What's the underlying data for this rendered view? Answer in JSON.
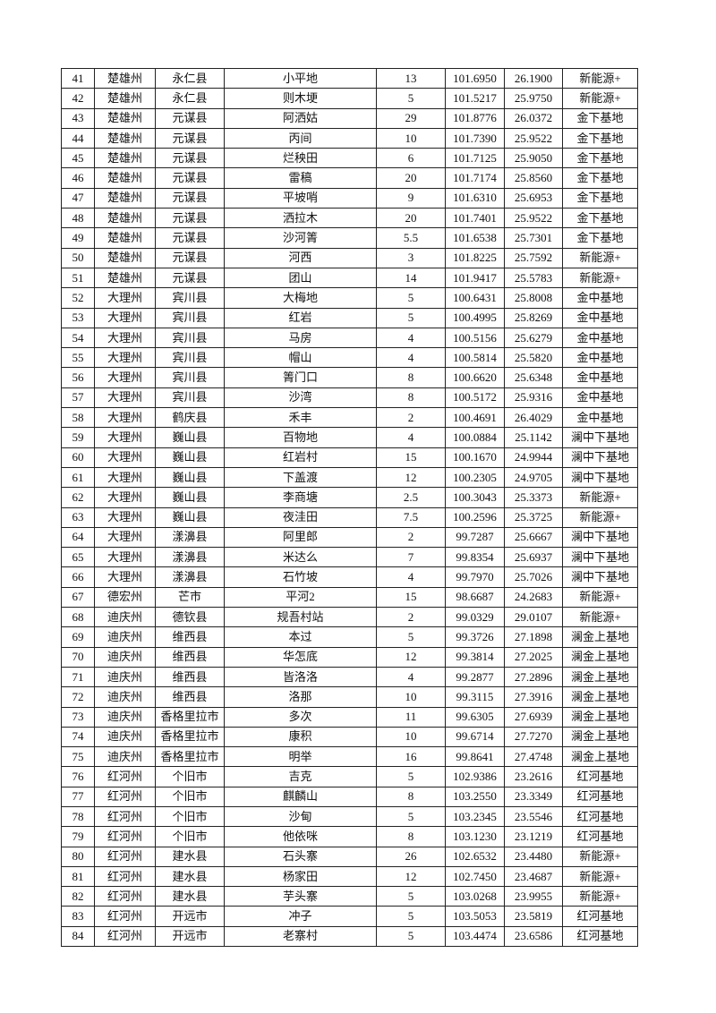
{
  "table": {
    "rows": [
      [
        "41",
        "楚雄州",
        "永仁县",
        "小平地",
        "13",
        "101.6950",
        "26.1900",
        "新能源+"
      ],
      [
        "42",
        "楚雄州",
        "永仁县",
        "则木埂",
        "5",
        "101.5217",
        "25.9750",
        "新能源+"
      ],
      [
        "43",
        "楚雄州",
        "元谋县",
        "阿洒姑",
        "29",
        "101.8776",
        "26.0372",
        "金下基地"
      ],
      [
        "44",
        "楚雄州",
        "元谋县",
        "丙间",
        "10",
        "101.7390",
        "25.9522",
        "金下基地"
      ],
      [
        "45",
        "楚雄州",
        "元谋县",
        "烂秧田",
        "6",
        "101.7125",
        "25.9050",
        "金下基地"
      ],
      [
        "46",
        "楚雄州",
        "元谋县",
        "雷稿",
        "20",
        "101.7174",
        "25.8560",
        "金下基地"
      ],
      [
        "47",
        "楚雄州",
        "元谋县",
        "平坡哨",
        "9",
        "101.6310",
        "25.6953",
        "金下基地"
      ],
      [
        "48",
        "楚雄州",
        "元谋县",
        "洒拉木",
        "20",
        "101.7401",
        "25.9522",
        "金下基地"
      ],
      [
        "49",
        "楚雄州",
        "元谋县",
        "沙河箐",
        "5.5",
        "101.6538",
        "25.7301",
        "金下基地"
      ],
      [
        "50",
        "楚雄州",
        "元谋县",
        "河西",
        "3",
        "101.8225",
        "25.7592",
        "新能源+"
      ],
      [
        "51",
        "楚雄州",
        "元谋县",
        "团山",
        "14",
        "101.9417",
        "25.5783",
        "新能源+"
      ],
      [
        "52",
        "大理州",
        "宾川县",
        "大梅地",
        "5",
        "100.6431",
        "25.8008",
        "金中基地"
      ],
      [
        "53",
        "大理州",
        "宾川县",
        "红岩",
        "5",
        "100.4995",
        "25.8269",
        "金中基地"
      ],
      [
        "54",
        "大理州",
        "宾川县",
        "马房",
        "4",
        "100.5156",
        "25.6279",
        "金中基地"
      ],
      [
        "55",
        "大理州",
        "宾川县",
        "帽山",
        "4",
        "100.5814",
        "25.5820",
        "金中基地"
      ],
      [
        "56",
        "大理州",
        "宾川县",
        "箐门口",
        "8",
        "100.6620",
        "25.6348",
        "金中基地"
      ],
      [
        "57",
        "大理州",
        "宾川县",
        "沙湾",
        "8",
        "100.5172",
        "25.9316",
        "金中基地"
      ],
      [
        "58",
        "大理州",
        "鹤庆县",
        "禾丰",
        "2",
        "100.4691",
        "26.4029",
        "金中基地"
      ],
      [
        "59",
        "大理州",
        "巍山县",
        "百物地",
        "4",
        "100.0884",
        "25.1142",
        "澜中下基地"
      ],
      [
        "60",
        "大理州",
        "巍山县",
        "红岩村",
        "15",
        "100.1670",
        "24.9944",
        "澜中下基地"
      ],
      [
        "61",
        "大理州",
        "巍山县",
        "下盖渡",
        "12",
        "100.2305",
        "24.9705",
        "澜中下基地"
      ],
      [
        "62",
        "大理州",
        "巍山县",
        "李商塘",
        "2.5",
        "100.3043",
        "25.3373",
        "新能源+"
      ],
      [
        "63",
        "大理州",
        "巍山县",
        "夜洼田",
        "7.5",
        "100.2596",
        "25.3725",
        "新能源+"
      ],
      [
        "64",
        "大理州",
        "漾濞县",
        "阿里郎",
        "2",
        "99.7287",
        "25.6667",
        "澜中下基地"
      ],
      [
        "65",
        "大理州",
        "漾濞县",
        "米达么",
        "7",
        "99.8354",
        "25.6937",
        "澜中下基地"
      ],
      [
        "66",
        "大理州",
        "漾濞县",
        "石竹坡",
        "4",
        "99.7970",
        "25.7026",
        "澜中下基地"
      ],
      [
        "67",
        "德宏州",
        "芒市",
        "平河2",
        "15",
        "98.6687",
        "24.2683",
        "新能源+"
      ],
      [
        "68",
        "迪庆州",
        "德钦县",
        "规吾村站",
        "2",
        "99.0329",
        "29.0107",
        "新能源+"
      ],
      [
        "69",
        "迪庆州",
        "维西县",
        "本过",
        "5",
        "99.3726",
        "27.1898",
        "澜金上基地"
      ],
      [
        "70",
        "迪庆州",
        "维西县",
        "华怎底",
        "12",
        "99.3814",
        "27.2025",
        "澜金上基地"
      ],
      [
        "71",
        "迪庆州",
        "维西县",
        "皆洛洛",
        "4",
        "99.2877",
        "27.2896",
        "澜金上基地"
      ],
      [
        "72",
        "迪庆州",
        "维西县",
        "洛那",
        "10",
        "99.3115",
        "27.3916",
        "澜金上基地"
      ],
      [
        "73",
        "迪庆州",
        "香格里拉市",
        "多次",
        "11",
        "99.6305",
        "27.6939",
        "澜金上基地"
      ],
      [
        "74",
        "迪庆州",
        "香格里拉市",
        "康积",
        "10",
        "99.6714",
        "27.7270",
        "澜金上基地"
      ],
      [
        "75",
        "迪庆州",
        "香格里拉市",
        "明举",
        "16",
        "99.8641",
        "27.4748",
        "澜金上基地"
      ],
      [
        "76",
        "红河州",
        "个旧市",
        "吉克",
        "5",
        "102.9386",
        "23.2616",
        "红河基地"
      ],
      [
        "77",
        "红河州",
        "个旧市",
        "麒麟山",
        "8",
        "103.2550",
        "23.3349",
        "红河基地"
      ],
      [
        "78",
        "红河州",
        "个旧市",
        "沙甸",
        "5",
        "103.2345",
        "23.5546",
        "红河基地"
      ],
      [
        "79",
        "红河州",
        "个旧市",
        "他依咪",
        "8",
        "103.1230",
        "23.1219",
        "红河基地"
      ],
      [
        "80",
        "红河州",
        "建水县",
        "石头寨",
        "26",
        "102.6532",
        "23.4480",
        "新能源+"
      ],
      [
        "81",
        "红河州",
        "建水县",
        "杨家田",
        "12",
        "102.7450",
        "23.4687",
        "新能源+"
      ],
      [
        "82",
        "红河州",
        "建水县",
        "芋头寨",
        "5",
        "103.0268",
        "23.9955",
        "新能源+"
      ],
      [
        "83",
        "红河州",
        "开远市",
        "冲子",
        "5",
        "103.5053",
        "23.5819",
        "红河基地"
      ],
      [
        "84",
        "红河州",
        "开远市",
        "老寨村",
        "5",
        "103.4474",
        "23.6586",
        "红河基地"
      ]
    ]
  }
}
